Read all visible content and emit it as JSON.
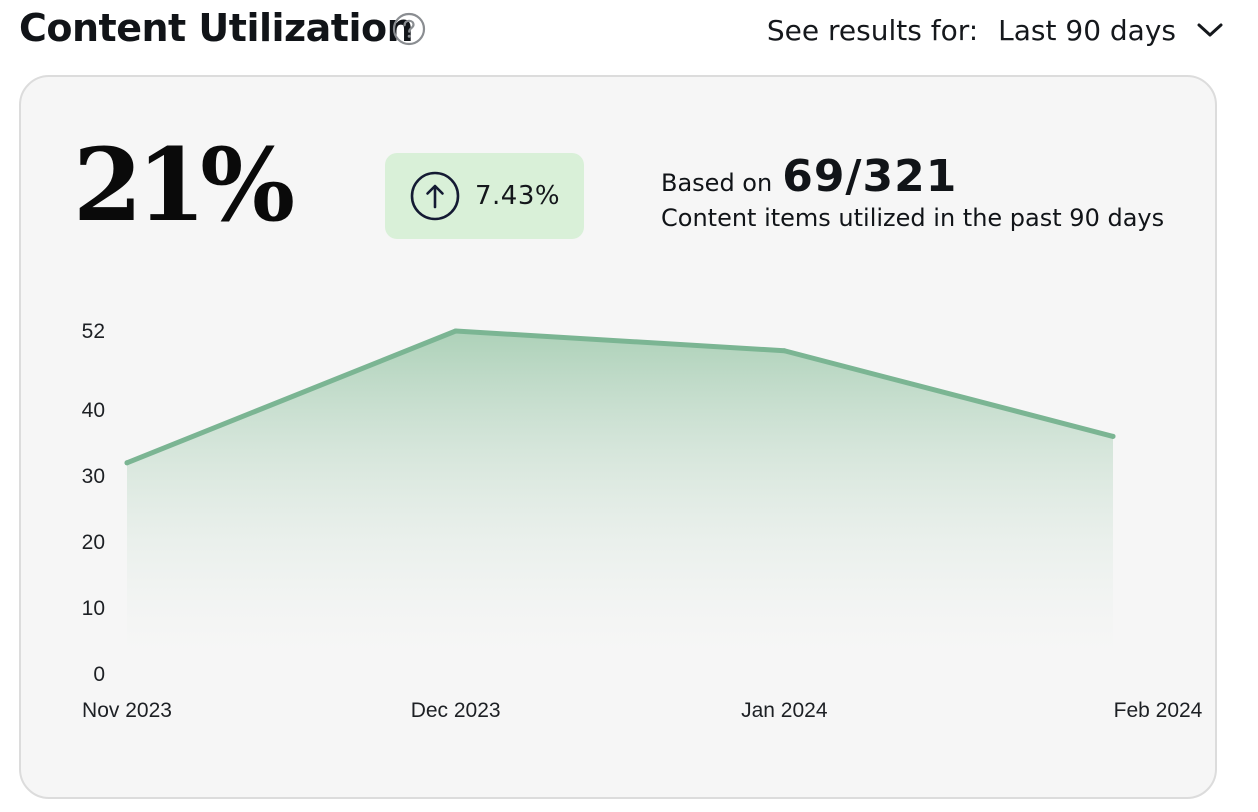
{
  "header": {
    "title": "Content Utilization",
    "results_label": "See results for:",
    "range_value": "Last 90 days"
  },
  "summary": {
    "utilization_percent": "21%",
    "change": "7.43%",
    "change_direction": "up",
    "based_on_label": "Based on",
    "based_on_value": "69/321",
    "based_on_caption": "Content items utilized in the past 90 days"
  },
  "colors": {
    "line": "#7bb593",
    "area_top": "#a9cfb5",
    "badge_bg": "#d9f0d8"
  },
  "chart_data": {
    "type": "area",
    "x": [
      "Nov 2023",
      "Dec 2023",
      "Jan 2024",
      "Feb 2024"
    ],
    "y_ticks": [
      0,
      10,
      20,
      30,
      40,
      52
    ],
    "ylim": [
      0,
      52
    ],
    "series": [
      {
        "values": [
          32,
          52,
          49,
          36
        ]
      }
    ],
    "grid": false,
    "legend": "none"
  }
}
